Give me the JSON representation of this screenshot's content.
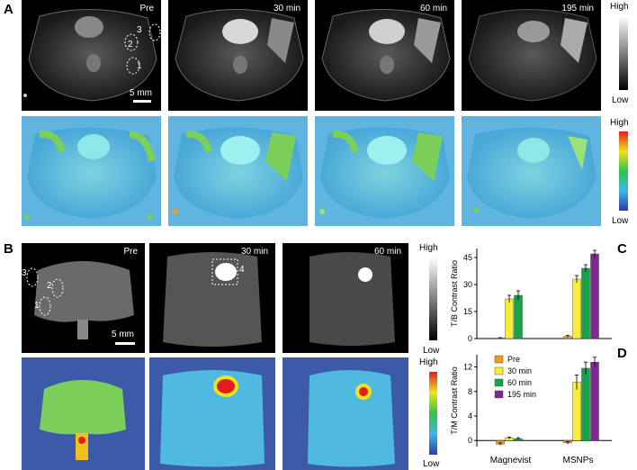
{
  "panels": {
    "A": {
      "label": "A",
      "times": [
        "Pre",
        "30 min",
        "60 min",
        "195 min"
      ],
      "roi_labels": [
        "3",
        "2",
        "1"
      ],
      "scale": "5 mm",
      "colorbar_gray": {
        "high": "High",
        "low": "Low"
      },
      "colorbar_heat": {
        "high": "High",
        "low": "Low"
      }
    },
    "B": {
      "label": "B",
      "times": [
        "Pre",
        "30 min",
        "60 min"
      ],
      "roi_labels": [
        "3",
        "2",
        "1"
      ],
      "roi_30": "4",
      "scale": "5 mm",
      "colorbar_gray": {
        "high": "High",
        "low": "Low"
      },
      "colorbar_heat": {
        "high": "High",
        "low": "Low"
      }
    }
  },
  "chart_data": [
    {
      "panel": "C",
      "type": "bar",
      "ylabel": "T/B Contrast Ratio",
      "ylim": [
        0,
        50
      ],
      "yticks": [
        0,
        15,
        30,
        45
      ],
      "categories": [
        "Magnevist",
        "MSNPs"
      ],
      "series": [
        {
          "name": "Pre",
          "color": "#f39c1f",
          "values": [
            0.3,
            1.2
          ],
          "err": [
            0.2,
            0.5
          ]
        },
        {
          "name": "30 min",
          "color": "#f7ee3a",
          "values": [
            22,
            33
          ],
          "err": [
            2,
            2
          ]
        },
        {
          "name": "60 min",
          "color": "#16a34a",
          "values": [
            24,
            39
          ],
          "err": [
            2.5,
            2
          ]
        },
        {
          "name": "195 min",
          "color": "#7b2b8f",
          "values": [
            null,
            47
          ],
          "err": [
            null,
            2
          ]
        }
      ]
    },
    {
      "panel": "D",
      "type": "bar",
      "ylabel": "T/M Contrast Ratio",
      "ylim": [
        -1,
        14
      ],
      "yticks": [
        0,
        4,
        8,
        12
      ],
      "categories": [
        "Magnevist",
        "MSNPs"
      ],
      "series": [
        {
          "name": "Pre",
          "color": "#f39c1f",
          "values": [
            -0.6,
            -0.4
          ],
          "err": [
            0.2,
            0.2
          ]
        },
        {
          "name": "30 min",
          "color": "#f7ee3a",
          "values": [
            0.4,
            9.5
          ],
          "err": [
            0.15,
            1.2
          ]
        },
        {
          "name": "60 min",
          "color": "#16a34a",
          "values": [
            0.3,
            11.8
          ],
          "err": [
            0.15,
            1
          ]
        },
        {
          "name": "195 min",
          "color": "#7b2b8f",
          "values": [
            null,
            12.8
          ],
          "err": [
            null,
            0.8
          ]
        }
      ],
      "legend": [
        "Pre",
        "30 min",
        "60 min",
        "195 min"
      ]
    }
  ]
}
